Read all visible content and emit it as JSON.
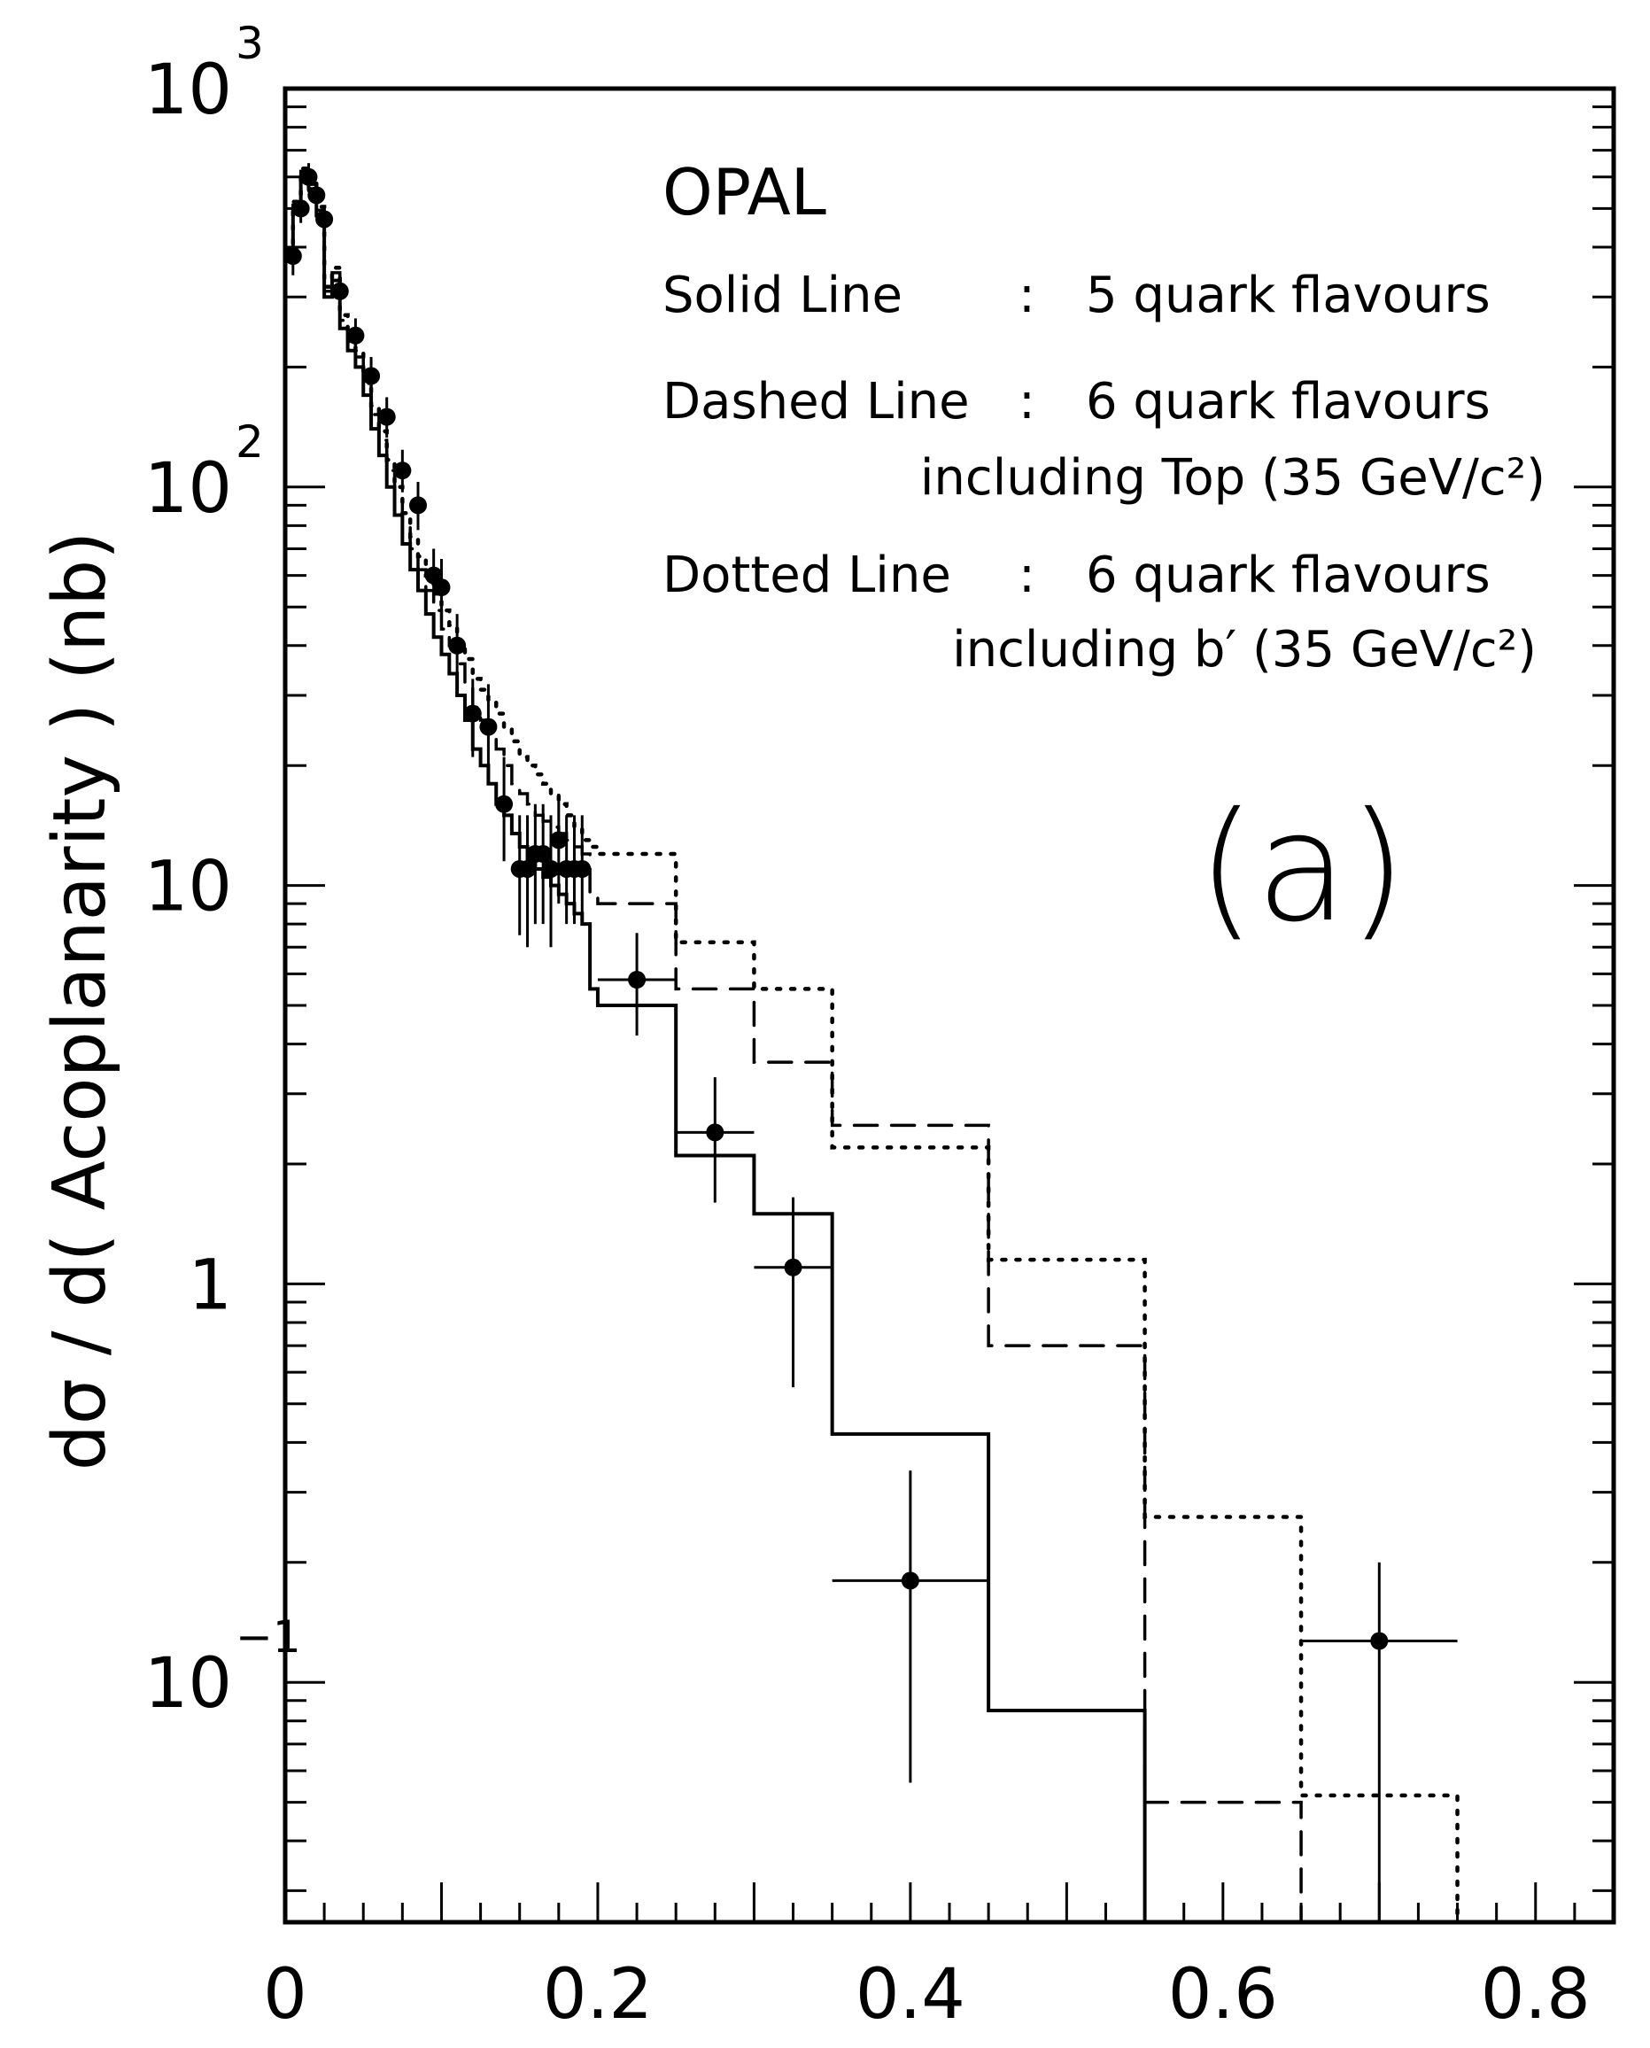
{
  "chart_data": {
    "type": "step-histogram",
    "title": "OPAL",
    "panel_label": "(a)",
    "xlabel": "",
    "ylabel": "dσ / d( Acoplanarity ) (nb)",
    "xlim": [
      0,
      0.85
    ],
    "ylim": [
      0.025,
      1000
    ],
    "y_scale": "log",
    "x_tick_labels": [
      {
        "value": 0,
        "label": "0"
      },
      {
        "value": 0.2,
        "label": "0.2"
      },
      {
        "value": 0.4,
        "label": "0.4"
      },
      {
        "value": 0.6,
        "label": "0.6"
      },
      {
        "value": 0.8,
        "label": "0.8"
      }
    ],
    "y_tick_labels": [
      {
        "value": 1000,
        "base": "10",
        "exp": "3"
      },
      {
        "value": 100,
        "base": "10",
        "exp": "2"
      },
      {
        "value": 10,
        "base": "10",
        "exp": ""
      },
      {
        "value": 1,
        "base": "1",
        "exp": ""
      },
      {
        "value": 0.1,
        "base": "10",
        "exp": "−1"
      }
    ],
    "legend": {
      "solid": {
        "name": "Solid  Line",
        "sep": ":",
        "desc": "5 quark flavours"
      },
      "dashed": {
        "name": "Dashed Line",
        "sep": ":",
        "desc": "6 quark flavours",
        "desc2": "including Top  (35 GeV/c²)"
      },
      "dotted": {
        "name": "Dotted Line",
        "sep": ":",
        "desc": "6 quark flavours",
        "desc2": "including b′  (35 GeV/c²)"
      }
    },
    "series": [
      {
        "name": "Solid Line",
        "style": "solid",
        "edges": [
          0,
          0.005,
          0.01,
          0.015,
          0.02,
          0.025,
          0.03,
          0.035,
          0.04,
          0.045,
          0.05,
          0.055,
          0.06,
          0.065,
          0.07,
          0.075,
          0.08,
          0.085,
          0.09,
          0.095,
          0.1,
          0.105,
          0.11,
          0.115,
          0.12,
          0.125,
          0.13,
          0.135,
          0.14,
          0.145,
          0.15,
          0.155,
          0.16,
          0.165,
          0.17,
          0.175,
          0.18,
          0.185,
          0.19,
          0.195,
          0.2,
          0.25,
          0.3,
          0.35,
          0.45,
          0.55
        ],
        "values": [
          380,
          500,
          600,
          560,
          480,
          300,
          330,
          250,
          220,
          200,
          170,
          140,
          120,
          100,
          85,
          72,
          62,
          55,
          48,
          42,
          38,
          34,
          30,
          26,
          22,
          20,
          18,
          16,
          15,
          13.5,
          12.5,
          11.5,
          11,
          10.5,
          10,
          9.5,
          9,
          8.5,
          8,
          5.5,
          5,
          2.1,
          1.5,
          0.42,
          0.085
        ]
      },
      {
        "name": "Dashed Line",
        "style": "dashed",
        "edges": [
          0,
          0.005,
          0.01,
          0.015,
          0.02,
          0.025,
          0.03,
          0.035,
          0.04,
          0.045,
          0.05,
          0.055,
          0.06,
          0.065,
          0.07,
          0.075,
          0.08,
          0.085,
          0.09,
          0.095,
          0.1,
          0.105,
          0.11,
          0.115,
          0.12,
          0.125,
          0.13,
          0.135,
          0.14,
          0.145,
          0.15,
          0.155,
          0.16,
          0.165,
          0.17,
          0.175,
          0.18,
          0.185,
          0.19,
          0.195,
          0.2,
          0.25,
          0.3,
          0.35,
          0.45,
          0.55,
          0.65
        ],
        "values": [
          390,
          510,
          620,
          575,
          495,
          310,
          345,
          262,
          232,
          212,
          182,
          152,
          131,
          110,
          94,
          80,
          70,
          62,
          55,
          49,
          44,
          40,
          36,
          32,
          28,
          26,
          24,
          22,
          20,
          18,
          17,
          16,
          15,
          14.5,
          14,
          13.5,
          13,
          12.5,
          12,
          9.5,
          9,
          5.5,
          3.6,
          2.5,
          0.7,
          0.05
        ]
      },
      {
        "name": "Dotted Line",
        "style": "dotted",
        "edges": [
          0,
          0.005,
          0.01,
          0.015,
          0.02,
          0.025,
          0.03,
          0.035,
          0.04,
          0.045,
          0.05,
          0.055,
          0.06,
          0.065,
          0.07,
          0.075,
          0.08,
          0.085,
          0.09,
          0.095,
          0.1,
          0.105,
          0.11,
          0.115,
          0.12,
          0.125,
          0.13,
          0.135,
          0.14,
          0.145,
          0.15,
          0.155,
          0.16,
          0.165,
          0.17,
          0.175,
          0.18,
          0.185,
          0.19,
          0.195,
          0.2,
          0.25,
          0.3,
          0.35,
          0.45,
          0.55,
          0.65,
          0.75
        ],
        "values": [
          395,
          520,
          630,
          585,
          505,
          318,
          355,
          270,
          240,
          220,
          190,
          160,
          138,
          117,
          100,
          86,
          75,
          67,
          60,
          54,
          49,
          45,
          41,
          37,
          33,
          31,
          29,
          27,
          25,
          23,
          21,
          20,
          19,
          18,
          17,
          16,
          15,
          14,
          13,
          12.5,
          12,
          7.2,
          5.5,
          2.2,
          1.15,
          0.26,
          0.052
        ]
      }
    ],
    "data_points": [
      {
        "x": 0.005,
        "y": 380,
        "xerr": 0.0025,
        "ylo": 340,
        "yhi": 420
      },
      {
        "x": 0.01,
        "y": 500,
        "xerr": 0.0025,
        "ylo": 460,
        "yhi": 540
      },
      {
        "x": 0.015,
        "y": 600,
        "xerr": 0.0025,
        "ylo": 550,
        "yhi": 650
      },
      {
        "x": 0.02,
        "y": 540,
        "xerr": 0.0025,
        "ylo": 500,
        "yhi": 580
      },
      {
        "x": 0.025,
        "y": 470,
        "xerr": 0.0025,
        "ylo": 430,
        "yhi": 510
      },
      {
        "x": 0.035,
        "y": 310,
        "xerr": 0.0025,
        "ylo": 280,
        "yhi": 340
      },
      {
        "x": 0.045,
        "y": 240,
        "xerr": 0.0025,
        "ylo": 215,
        "yhi": 265
      },
      {
        "x": 0.055,
        "y": 190,
        "xerr": 0.0025,
        "ylo": 170,
        "yhi": 212
      },
      {
        "x": 0.065,
        "y": 150,
        "xerr": 0.0025,
        "ylo": 133,
        "yhi": 168
      },
      {
        "x": 0.075,
        "y": 110,
        "xerr": 0.0025,
        "ylo": 97,
        "yhi": 124
      },
      {
        "x": 0.085,
        "y": 90,
        "xerr": 0.0025,
        "ylo": 78,
        "yhi": 103
      },
      {
        "x": 0.095,
        "y": 60,
        "xerr": 0.0025,
        "ylo": 51,
        "yhi": 70
      },
      {
        "x": 0.1,
        "y": 56,
        "xerr": 0.0025,
        "ylo": 47,
        "yhi": 66
      },
      {
        "x": 0.11,
        "y": 40,
        "xerr": 0.0025,
        "ylo": 33,
        "yhi": 48
      },
      {
        "x": 0.12,
        "y": 27,
        "xerr": 0.0025,
        "ylo": 21,
        "yhi": 33
      },
      {
        "x": 0.13,
        "y": 25,
        "xerr": 0.0025,
        "ylo": 19,
        "yhi": 32
      },
      {
        "x": 0.14,
        "y": 16,
        "xerr": 0.0025,
        "ylo": 11.5,
        "yhi": 21
      },
      {
        "x": 0.15,
        "y": 11,
        "xerr": 0.0025,
        "ylo": 7.5,
        "yhi": 15
      },
      {
        "x": 0.155,
        "y": 11,
        "xerr": 0.0025,
        "ylo": 7,
        "yhi": 15
      },
      {
        "x": 0.16,
        "y": 12,
        "xerr": 0.0025,
        "ylo": 8,
        "yhi": 16
      },
      {
        "x": 0.165,
        "y": 12,
        "xerr": 0.0025,
        "ylo": 8,
        "yhi": 16
      },
      {
        "x": 0.17,
        "y": 11,
        "xerr": 0.0025,
        "ylo": 7,
        "yhi": 15
      },
      {
        "x": 0.175,
        "y": 13,
        "xerr": 0.0025,
        "ylo": 9,
        "yhi": 17
      },
      {
        "x": 0.18,
        "y": 11,
        "xerr": 0.0025,
        "ylo": 8,
        "yhi": 15
      },
      {
        "x": 0.185,
        "y": 11,
        "xerr": 0.0025,
        "ylo": 8,
        "yhi": 15
      },
      {
        "x": 0.19,
        "y": 11,
        "xerr": 0.0025,
        "ylo": 8,
        "yhi": 15
      },
      {
        "x": 0.225,
        "y": 5.8,
        "xerr": 0.025,
        "ylo": 4.2,
        "yhi": 7.6
      },
      {
        "x": 0.275,
        "y": 2.4,
        "xerr": 0.025,
        "ylo": 1.6,
        "yhi": 3.3
      },
      {
        "x": 0.325,
        "y": 1.1,
        "xerr": 0.025,
        "ylo": 0.55,
        "yhi": 1.65
      },
      {
        "x": 0.4,
        "y": 0.18,
        "xerr": 0.05,
        "ylo": 0.056,
        "yhi": 0.34
      },
      {
        "x": 0.7,
        "y": 0.127,
        "xerr": 0.05,
        "ylo": 0.022,
        "yhi": 0.2
      }
    ]
  }
}
